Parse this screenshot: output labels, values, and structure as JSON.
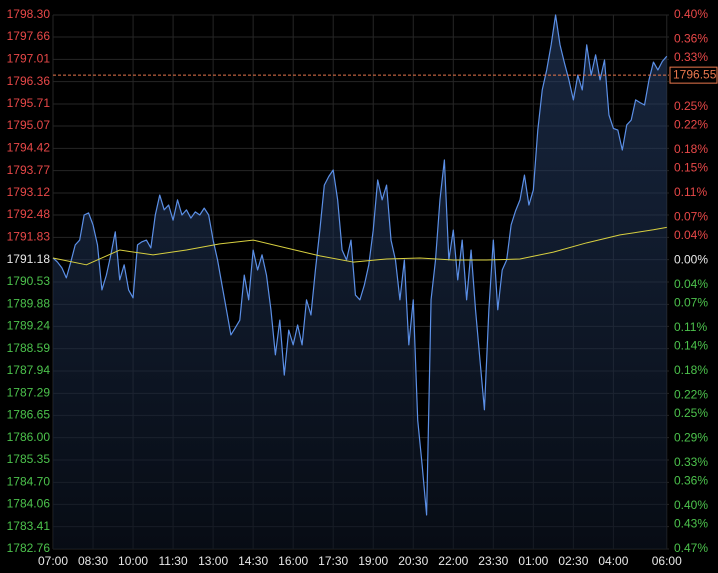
{
  "chart_data": {
    "type": "line",
    "background": "#000000",
    "grid": true,
    "grid_color": "#262626",
    "positive_color": "#e84848",
    "negative_color": "#4cc24c",
    "neutral_color": "#e8e8e8",
    "xlim": [
      0,
      1385
    ],
    "xticks": [
      {
        "value": 0,
        "label": "07:00"
      },
      {
        "value": 90,
        "label": "08:30"
      },
      {
        "value": 180,
        "label": "10:00"
      },
      {
        "value": 270,
        "label": "11:30"
      },
      {
        "value": 360,
        "label": "13:00"
      },
      {
        "value": 450,
        "label": "14:30"
      },
      {
        "value": 540,
        "label": "16:00"
      },
      {
        "value": 630,
        "label": "17:30"
      },
      {
        "value": 720,
        "label": "19:00"
      },
      {
        "value": 810,
        "label": "20:30"
      },
      {
        "value": 900,
        "label": "22:00"
      },
      {
        "value": 990,
        "label": "23:30"
      },
      {
        "value": 1080,
        "label": "01:00"
      },
      {
        "value": 1170,
        "label": "02:30"
      },
      {
        "value": 1260,
        "label": "04:00"
      },
      {
        "value": 1380,
        "label": "06:00"
      }
    ],
    "ylim": [
      1782.76,
      1798.3
    ],
    "yticks": [
      {
        "value": 1798.3,
        "label": "1798.30"
      },
      1797.66,
      1797.01,
      1796.36,
      1795.71,
      1795.07,
      1794.42,
      1793.77,
      1793.12,
      1792.48,
      1791.83,
      1791.18,
      1790.53,
      1789.88,
      1789.24,
      1788.59,
      1787.94,
      1787.29,
      1786.65,
      {
        "value": 1786,
        "label": "1786.00"
      },
      1785.35,
      {
        "value": 1784.7,
        "label": "1784.70"
      },
      1784.06,
      1783.41,
      1782.76
    ],
    "y2lim": [
      -0.47,
      0.4
    ],
    "y2ticks": [
      {
        "value": 0.4,
        "label": "0.40%"
      },
      {
        "value": 0.36,
        "label": "0.36%"
      },
      {
        "value": 0.33,
        "label": "0.33%"
      },
      {
        "value": 0.25,
        "label": "0.25%"
      },
      {
        "value": 0.22,
        "label": "0.22%"
      },
      {
        "value": 0.18,
        "label": "0.18%"
      },
      {
        "value": 0.15,
        "label": "0.15%"
      },
      {
        "value": 0.11,
        "label": "0.11%"
      },
      {
        "value": 0.07,
        "label": "0.07%"
      },
      {
        "value": 0.04,
        "label": "0.04%"
      },
      {
        "value": 0,
        "label": "0.00%"
      },
      {
        "value": -0.04,
        "label": "0.04%"
      },
      {
        "value": -0.07,
        "label": "0.07%"
      },
      {
        "value": -0.11,
        "label": "0.11%"
      },
      {
        "value": -0.14,
        "label": "0.14%"
      },
      {
        "value": -0.18,
        "label": "0.18%"
      },
      {
        "value": -0.22,
        "label": "0.22%"
      },
      {
        "value": -0.25,
        "label": "0.25%"
      },
      {
        "value": -0.29,
        "label": "0.29%"
      },
      {
        "value": -0.33,
        "label": "0.33%"
      },
      {
        "value": -0.36,
        "label": "0.36%"
      },
      {
        "value": -0.4,
        "label": "0.40%"
      },
      {
        "value": -0.43,
        "label": "0.43%"
      },
      {
        "value": -0.47,
        "label": "0.47%"
      }
    ],
    "ref_line": {
      "value": 1796.55,
      "color": "#e8774d"
    },
    "series": [
      {
        "color": "#5b8fe6",
        "area": true,
        "x": [
          0,
          10,
          20,
          30,
          40,
          50,
          60,
          70,
          80,
          90,
          100,
          110,
          120,
          130,
          140,
          150,
          160,
          170,
          180,
          190,
          200,
          210,
          220,
          230,
          240,
          250,
          260,
          270,
          280,
          290,
          300,
          310,
          320,
          330,
          340,
          350,
          360,
          370,
          380,
          390,
          400,
          410,
          420,
          430,
          440,
          450,
          460,
          470,
          480,
          490,
          500,
          510,
          520,
          530,
          540,
          550,
          560,
          570,
          580,
          590,
          600,
          610,
          620,
          630,
          640,
          650,
          660,
          670,
          680,
          690,
          700,
          710,
          720,
          730,
          740,
          750,
          760,
          770,
          780,
          790,
          800,
          810,
          820,
          830,
          840,
          850,
          860,
          870,
          880,
          890,
          900,
          910,
          920,
          930,
          940,
          950,
          960,
          970,
          980,
          990,
          1000,
          1010,
          1020,
          1030,
          1040,
          1050,
          1060,
          1070,
          1080,
          1090,
          1100,
          1110,
          1120,
          1130,
          1140,
          1150,
          1160,
          1170,
          1180,
          1190,
          1200,
          1210,
          1220,
          1230,
          1240,
          1250,
          1260,
          1270,
          1280,
          1290,
          1300,
          1310,
          1320,
          1330,
          1340,
          1350,
          1360,
          1370,
          1380
        ],
        "values": [
          1791.23,
          1791.11,
          1790.94,
          1790.65,
          1791.11,
          1791.61,
          1791.75,
          1792.48,
          1792.54,
          1792.19,
          1791.61,
          1790.3,
          1790.73,
          1791.32,
          1791.99,
          1790.59,
          1791.03,
          1790.3,
          1790.07,
          1791.61,
          1791.7,
          1791.75,
          1791.52,
          1792.48,
          1793.06,
          1792.63,
          1792.77,
          1792.33,
          1792.92,
          1792.48,
          1792.63,
          1792.39,
          1792.57,
          1792.48,
          1792.68,
          1792.48,
          1791.75,
          1791.17,
          1790.44,
          1789.72,
          1788.99,
          1789.2,
          1789.42,
          1790.73,
          1790.01,
          1791.46,
          1790.88,
          1791.32,
          1790.73,
          1789.72,
          1788.41,
          1789.42,
          1787.82,
          1789.13,
          1788.7,
          1789.28,
          1788.7,
          1790.01,
          1789.57,
          1790.88,
          1792.04,
          1793.35,
          1793.6,
          1793.79,
          1792.92,
          1791.46,
          1791.17,
          1791.75,
          1790.15,
          1790.01,
          1790.44,
          1791.03,
          1792.04,
          1793.5,
          1792.92,
          1793.35,
          1791.75,
          1791.17,
          1790.01,
          1791.17,
          1788.7,
          1790.01,
          1786.51,
          1785.2,
          1783.75,
          1790.01,
          1791.17,
          1792.92,
          1794.08,
          1791.17,
          1792.04,
          1790.59,
          1791.75,
          1790.01,
          1791.46,
          1789.72,
          1788.26,
          1786.81,
          1789.72,
          1791.75,
          1789.72,
          1790.88,
          1791.17,
          1792.19,
          1792.6,
          1792.92,
          1793.64,
          1792.77,
          1793.21,
          1794.95,
          1796.12,
          1796.7,
          1797.43,
          1798.3,
          1797.43,
          1796.9,
          1796.41,
          1795.83,
          1796.55,
          1796.12,
          1797.43,
          1796.55,
          1797.14,
          1796.41,
          1796.99,
          1795.39,
          1795.0,
          1794.95,
          1794.37,
          1795.1,
          1795.24,
          1795.83,
          1795.75,
          1795.68,
          1796.41,
          1796.93,
          1796.7,
          1796.95,
          1797.1
        ]
      },
      {
        "color": "#d8d040",
        "area": false,
        "x": [
          0,
          75,
          150,
          225,
          300,
          375,
          450,
          525,
          600,
          675,
          750,
          825,
          900,
          975,
          1050,
          1125,
          1200,
          1275,
          1350,
          1380
        ],
        "values": [
          1791.23,
          1791.03,
          1791.46,
          1791.32,
          1791.46,
          1791.64,
          1791.75,
          1791.52,
          1791.29,
          1791.11,
          1791.2,
          1791.23,
          1791.17,
          1791.17,
          1791.2,
          1791.4,
          1791.67,
          1791.9,
          1792.05,
          1792.12
        ]
      }
    ]
  }
}
